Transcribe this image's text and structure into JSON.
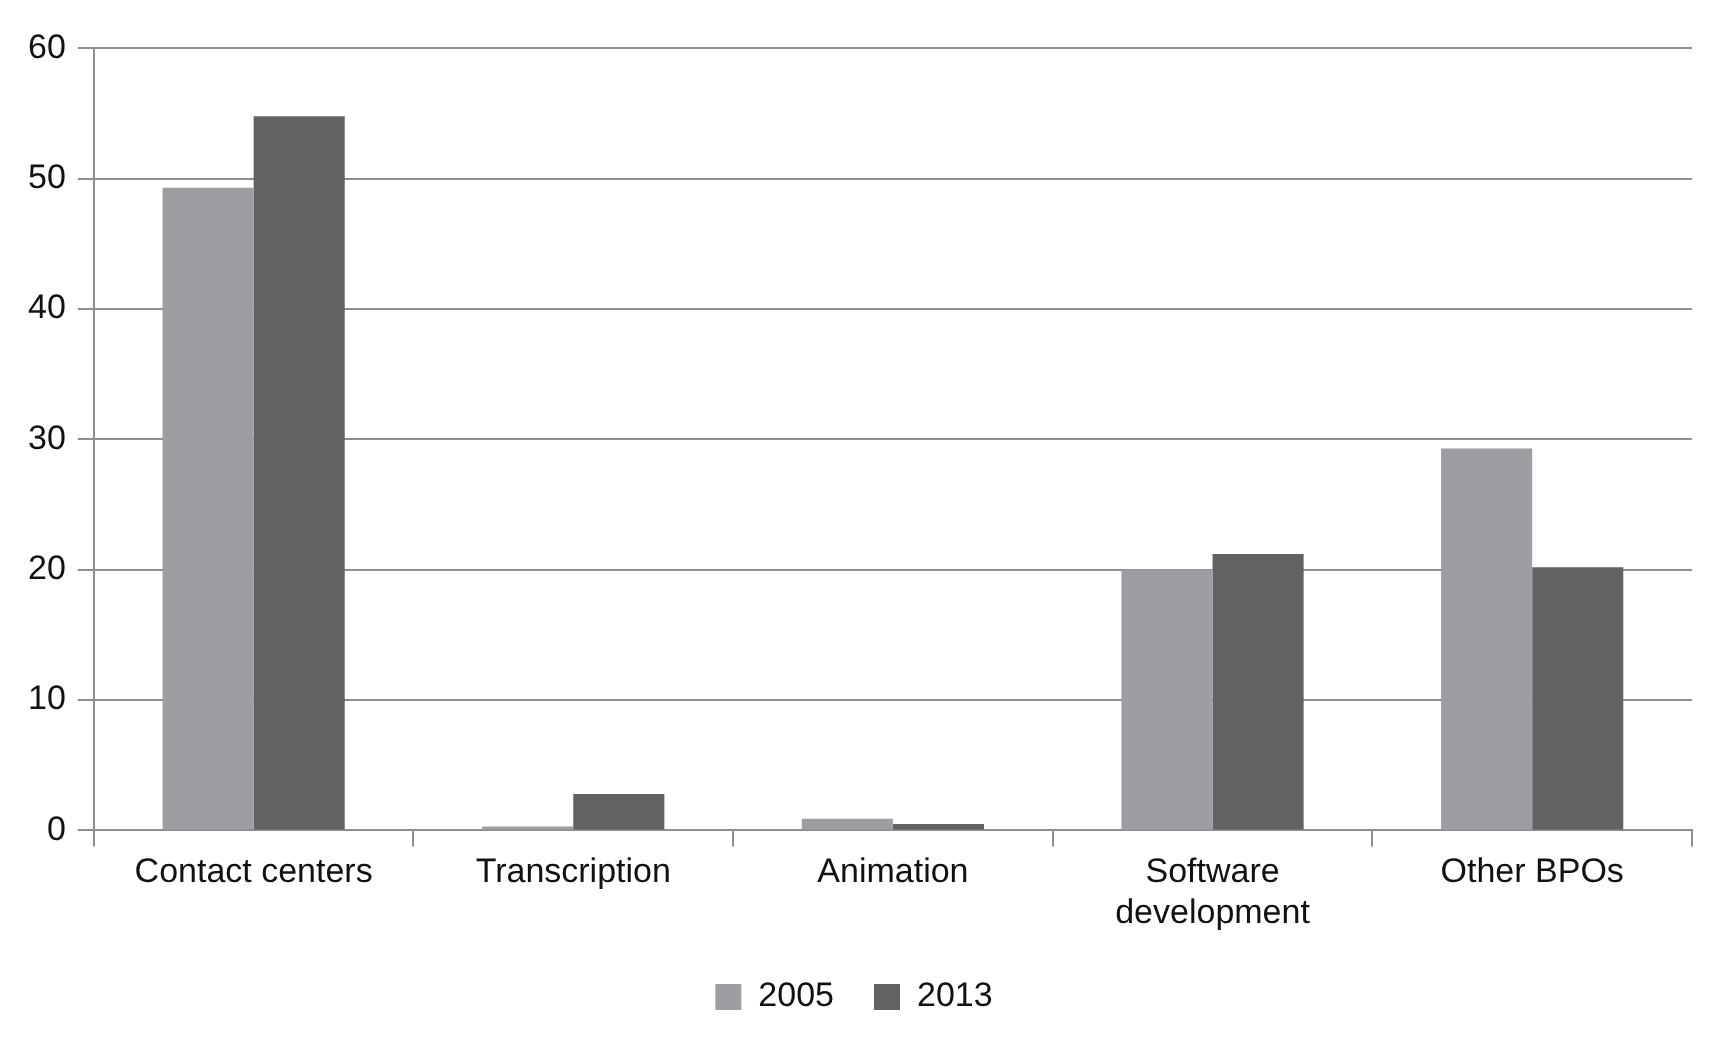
{
  "chart_data": {
    "type": "bar",
    "categories": [
      "Contact centers",
      "Transcription",
      "Animation",
      "Software development",
      "Other BPOs"
    ],
    "series": [
      {
        "name": "2005",
        "color": "#9d9ea2",
        "values": [
          49.3,
          0.3,
          0.9,
          20.0,
          29.3
        ]
      },
      {
        "name": "2013",
        "color": "#626264",
        "values": [
          54.8,
          2.8,
          0.5,
          21.2,
          20.2
        ]
      }
    ],
    "ylim": [
      0,
      60
    ],
    "yticks": [
      0,
      10,
      20,
      30,
      40,
      50,
      60
    ],
    "grid": "y",
    "legend": "bottom"
  }
}
